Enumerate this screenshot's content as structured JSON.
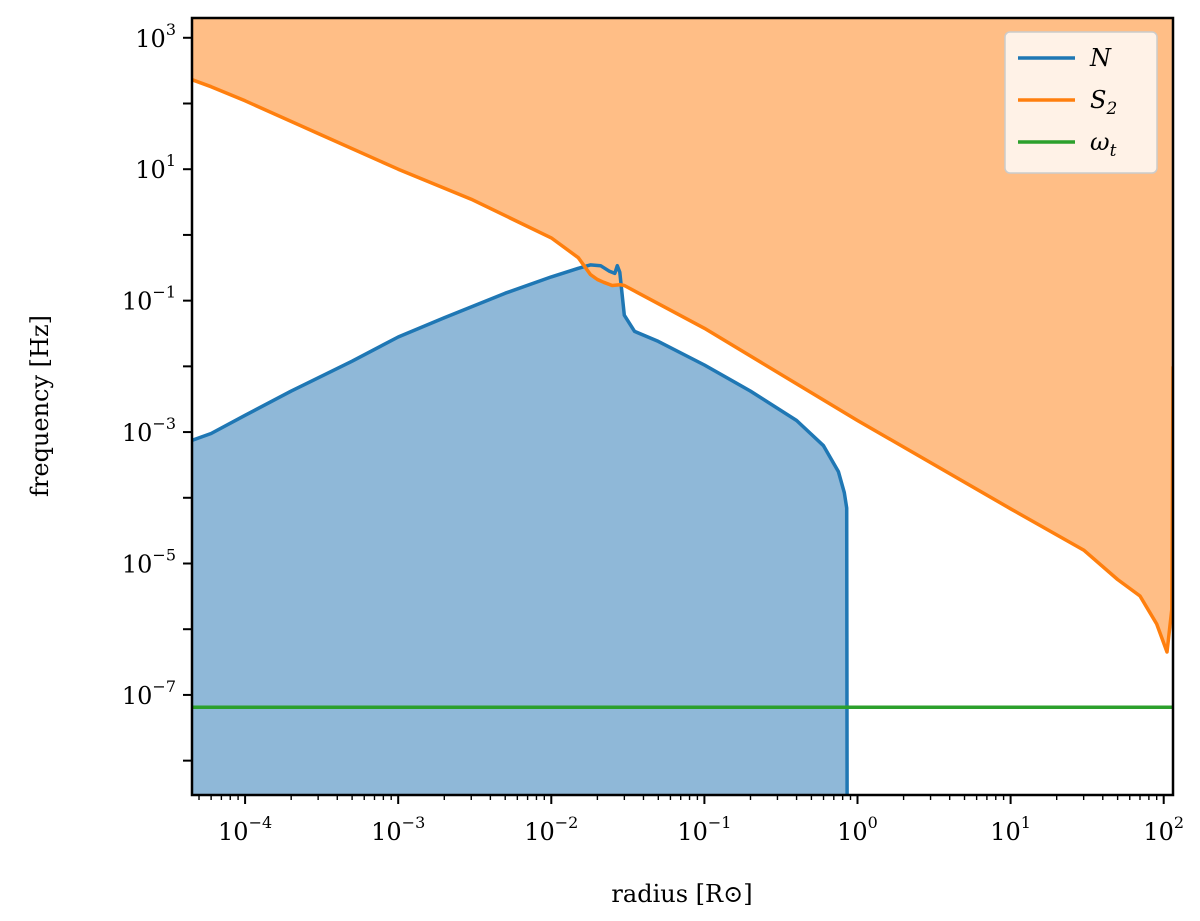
{
  "chart_data": {
    "type": "line",
    "xlabel": "radius [R⊙]",
    "ylabel": "frequency [Hz]",
    "xscale": "log",
    "yscale": "log",
    "xlim": [
      4.5e-05,
      115
    ],
    "ylim": [
      3e-09,
      2000
    ],
    "x_ticks": [
      {
        "value": 0.0001,
        "base": "10",
        "exp": "−4"
      },
      {
        "value": 0.001,
        "base": "10",
        "exp": "−3"
      },
      {
        "value": 0.01,
        "base": "10",
        "exp": "−2"
      },
      {
        "value": 0.1,
        "base": "10",
        "exp": "−1"
      },
      {
        "value": 1,
        "base": "10",
        "exp": "0"
      },
      {
        "value": 10,
        "base": "10",
        "exp": "1"
      },
      {
        "value": 100,
        "base": "10",
        "exp": "2"
      }
    ],
    "y_ticks": [
      {
        "value": 1000,
        "base": "10",
        "exp": "3"
      },
      {
        "value": 10,
        "base": "10",
        "exp": "1"
      },
      {
        "value": 0.1,
        "base": "10",
        "exp": "−1"
      },
      {
        "value": 0.001,
        "base": "10",
        "exp": "−3"
      },
      {
        "value": 1e-05,
        "base": "10",
        "exp": "−5"
      },
      {
        "value": 1e-07,
        "base": "10",
        "exp": "−7"
      }
    ],
    "legend": {
      "placement": "top-right"
    },
    "series": [
      {
        "name": "N",
        "sub": "",
        "color": "#1f77b4",
        "fill": "#8fb8d8",
        "fill_to": "bottom",
        "points": [
          [
            4.5e-05,
            0.00075
          ],
          [
            6e-05,
            0.00095
          ],
          [
            0.0001,
            0.0018
          ],
          [
            0.0002,
            0.0042
          ],
          [
            0.0005,
            0.012
          ],
          [
            0.001,
            0.028
          ],
          [
            0.002,
            0.055
          ],
          [
            0.005,
            0.13
          ],
          [
            0.01,
            0.23
          ],
          [
            0.015,
            0.31
          ],
          [
            0.018,
            0.35
          ],
          [
            0.021,
            0.34
          ],
          [
            0.024,
            0.28
          ],
          [
            0.026,
            0.26
          ],
          [
            0.027,
            0.34
          ],
          [
            0.028,
            0.27
          ],
          [
            0.03,
            0.06
          ],
          [
            0.035,
            0.034
          ],
          [
            0.05,
            0.024
          ],
          [
            0.1,
            0.0105
          ],
          [
            0.2,
            0.0042
          ],
          [
            0.4,
            0.0015
          ],
          [
            0.6,
            0.00062
          ],
          [
            0.75,
            0.00025
          ],
          [
            0.82,
            0.00012
          ],
          [
            0.85,
            7e-05
          ],
          [
            0.855,
            3e-09
          ]
        ]
      },
      {
        "name": "S",
        "sub": "2",
        "color": "#ff7f0e",
        "fill": "#ffbe86",
        "fill_to": "top",
        "points": [
          [
            4.5e-05,
            230
          ],
          [
            6e-05,
            180
          ],
          [
            0.0001,
            110
          ],
          [
            0.0003,
            35
          ],
          [
            0.001,
            10
          ],
          [
            0.003,
            3.5
          ],
          [
            0.006,
            1.6
          ],
          [
            0.01,
            0.9
          ],
          [
            0.015,
            0.45
          ],
          [
            0.018,
            0.25
          ],
          [
            0.02,
            0.21
          ],
          [
            0.022,
            0.19
          ],
          [
            0.025,
            0.17
          ],
          [
            0.028,
            0.175
          ],
          [
            0.03,
            0.17
          ],
          [
            0.1,
            0.038
          ],
          [
            1,
            0.0015
          ],
          [
            10,
            6.8e-05
          ],
          [
            30,
            1.6e-05
          ],
          [
            50,
            5.7e-06
          ],
          [
            70,
            3.2e-06
          ],
          [
            90,
            1.2e-06
          ],
          [
            105,
            4.5e-07
          ],
          [
            113,
            2e-06
          ],
          [
            114,
            0.0001
          ],
          [
            115,
            0.01
          ]
        ]
      },
      {
        "name": "ω",
        "sub": "t",
        "color": "#2ca02c",
        "fill": "",
        "points": [
          [
            4.5e-05,
            6.5e-08
          ],
          [
            115,
            6.5e-08
          ]
        ]
      }
    ]
  }
}
